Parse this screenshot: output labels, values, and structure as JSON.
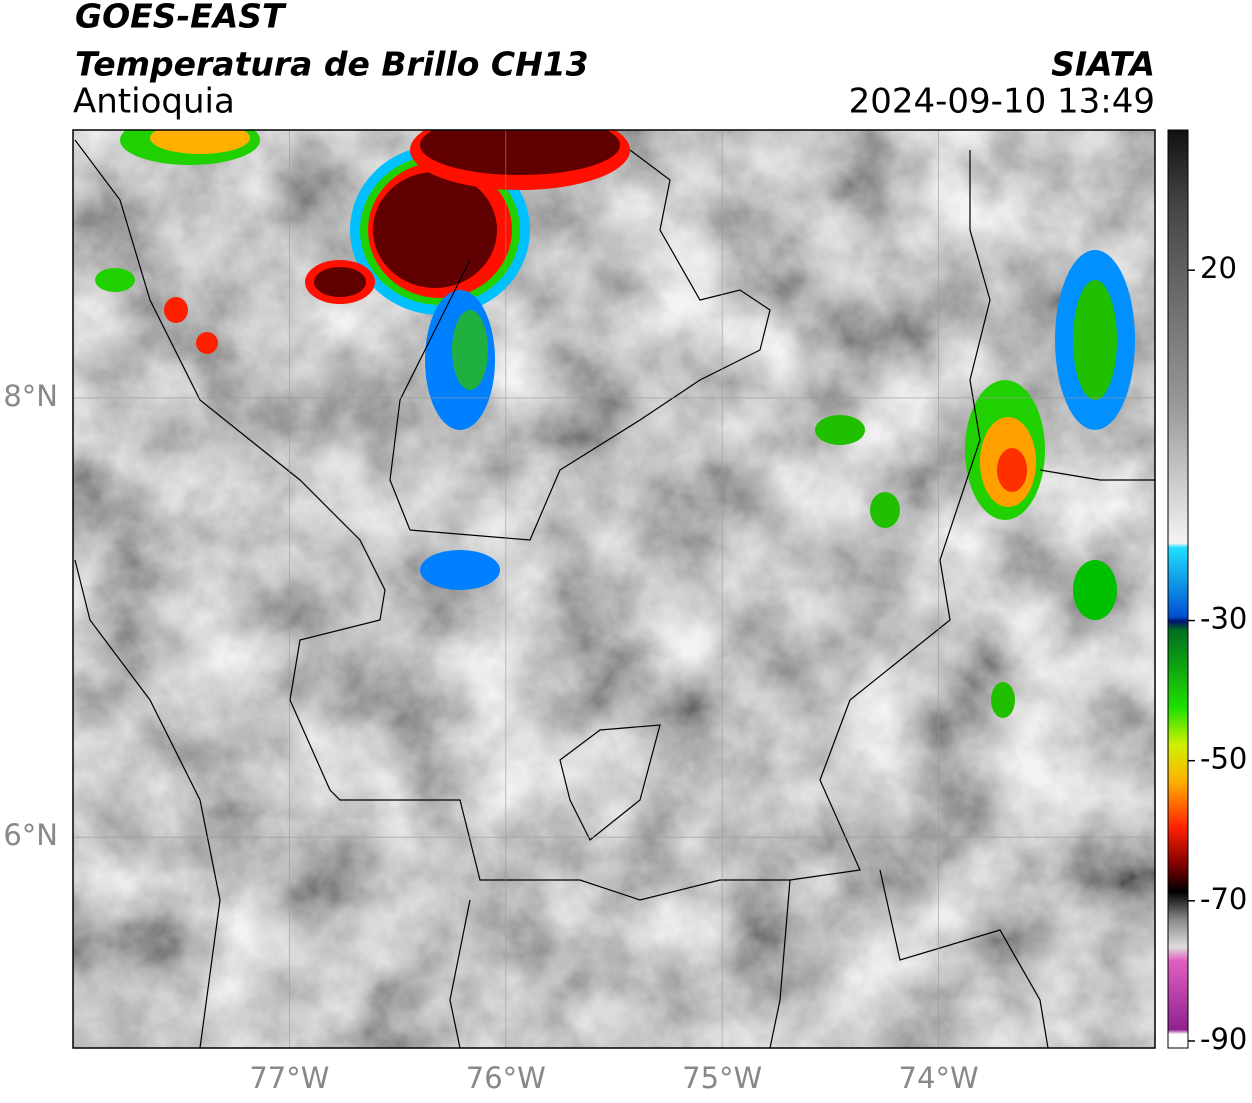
{
  "header": {
    "satellite": "GOES-EAST",
    "product": "Temperatura de Brillo CH13",
    "region": "Antioquia",
    "source": "SIATA",
    "datetime": "2024-09-10 13:49"
  },
  "map": {
    "xlim": [
      -78,
      -73
    ],
    "ylim": [
      5.04,
      9.22
    ],
    "xticks": [
      {
        "value": -77,
        "label": "77°W"
      },
      {
        "value": -76,
        "label": "76°W"
      },
      {
        "value": -75,
        "label": "75°W"
      },
      {
        "value": -74,
        "label": "74°W"
      }
    ],
    "yticks": [
      {
        "value": 6,
        "label": "6°N"
      },
      {
        "value": 8,
        "label": "8°N"
      }
    ],
    "grid": true
  },
  "colorbar": {
    "lim": [
      -91,
      40
    ],
    "ticks": [
      20,
      -30,
      -50,
      -70,
      -90
    ]
  }
}
